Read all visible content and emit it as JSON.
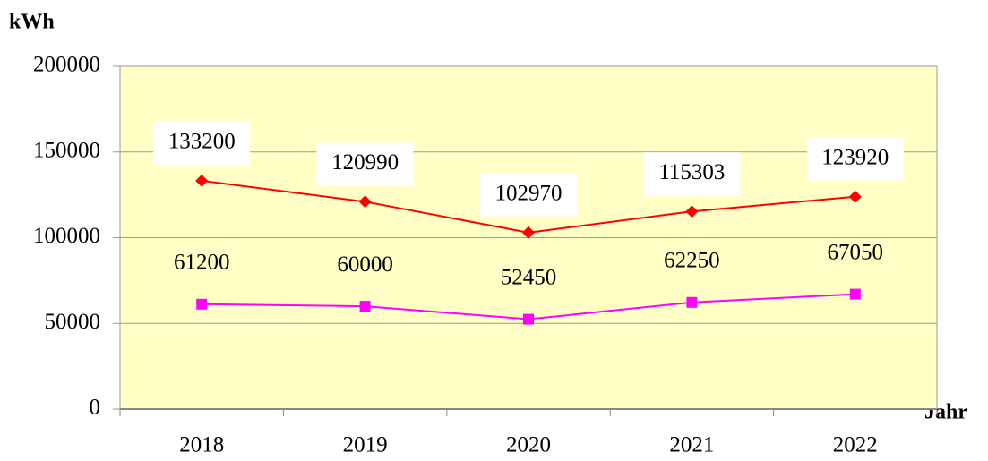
{
  "chart_data": {
    "type": "line",
    "y_label": "kWh",
    "x_label": "Jahr",
    "categories": [
      "2018",
      "2019",
      "2020",
      "2021",
      "2022"
    ],
    "series": [
      {
        "color": "#ff0000",
        "marker": "diamond",
        "values": [
          133200,
          120990,
          102970,
          115303,
          123920
        ]
      },
      {
        "color": "#ff00ff",
        "marker": "square",
        "values": [
          61200,
          60000,
          52450,
          62250,
          67050
        ]
      }
    ],
    "ylim": [
      0,
      200000
    ],
    "yticks": [
      0,
      50000,
      100000,
      150000,
      200000
    ],
    "grid": true,
    "plot_background": "#ffffc6"
  }
}
